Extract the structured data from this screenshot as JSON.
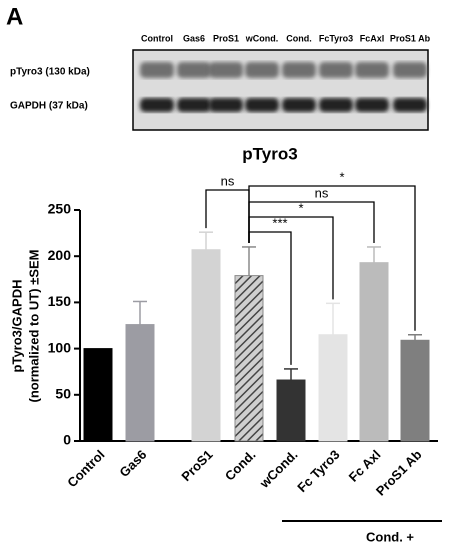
{
  "panel_label": "A",
  "blot": {
    "lanes": [
      "Control",
      "Gas6",
      "ProS1",
      "wCond.",
      "Cond.",
      "FcTyro3",
      "FcAxl",
      "ProS1 Ab"
    ],
    "rows": [
      "pTyro3 (130 kDa)",
      "GAPDH (37 kDa)"
    ]
  },
  "chart_data": {
    "type": "bar",
    "title": "pTyro3",
    "y_label": [
      "pTyro3/GAPDH",
      "(normalized to UT) ±SEM"
    ],
    "categories": [
      "Control",
      "Gas6",
      "ProS1",
      "Cond.",
      "wCond.",
      "Fc Tyro3",
      "Fc Axl",
      "ProS1 Ab"
    ],
    "values": [
      100,
      126,
      207,
      179,
      66,
      115,
      193,
      109
    ],
    "errors": [
      null,
      25,
      19,
      31,
      12,
      34,
      17,
      6
    ],
    "colors": [
      "#000000",
      "#9c9ca3",
      "#d3d3d3",
      "#8a8a8a",
      "#333333",
      "#e4e4e4",
      "#bbbbbb",
      "#7f7f7f"
    ],
    "hatch": [
      false,
      false,
      false,
      true,
      false,
      false,
      false,
      false
    ],
    "ylim": [
      0,
      250
    ],
    "yticks": [
      0,
      50,
      100,
      150,
      200,
      250
    ],
    "annotations": [
      "ns",
      "***",
      "*",
      "ns",
      "*"
    ],
    "group_label": "Cond. +"
  }
}
